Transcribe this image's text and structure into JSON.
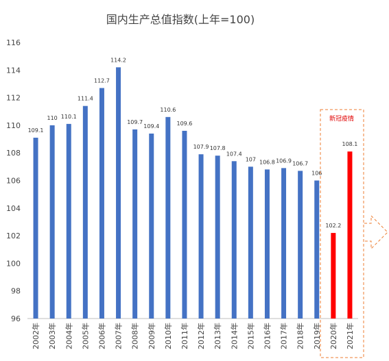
{
  "chart_data": {
    "type": "bar",
    "title": "国内生产总值指数(上年=100)",
    "xlabel": "",
    "ylabel": "",
    "ylim": [
      96,
      116
    ],
    "yticks": [
      96,
      98,
      100,
      102,
      104,
      106,
      108,
      110,
      112,
      114,
      116
    ],
    "grid": false,
    "categories": [
      "2002年",
      "2003年",
      "2004年",
      "2005年",
      "2006年",
      "2007年",
      "2008年",
      "2009年",
      "2010年",
      "2011年",
      "2012年",
      "2013年",
      "2014年",
      "2015年",
      "2016年",
      "2017年",
      "2018年",
      "2019年",
      "2020年",
      "2021年"
    ],
    "values": [
      109.1,
      110,
      110.1,
      111.4,
      112.7,
      114.2,
      109.7,
      109.4,
      110.6,
      109.6,
      107.9,
      107.8,
      107.4,
      107,
      106.8,
      106.9,
      106.7,
      106,
      102.2,
      108.1
    ],
    "value_labels": [
      "109.1",
      "110",
      "110.1",
      "111.4",
      "112.7",
      "114.2",
      "109.7",
      "109.4",
      "110.6",
      "109.6",
      "107.9",
      "107.8",
      "107.4",
      "107",
      "106.8",
      "106.9",
      "106.7",
      "106",
      "102.2",
      "108.1"
    ],
    "highlight_indices": [
      18,
      19
    ],
    "colors": {
      "bar": "#4472c4",
      "highlight": "#ff0000",
      "annotation_box": "#ed7d31",
      "annotation_text": "#e00000"
    },
    "annotation": {
      "text": "新冠疫情"
    }
  }
}
